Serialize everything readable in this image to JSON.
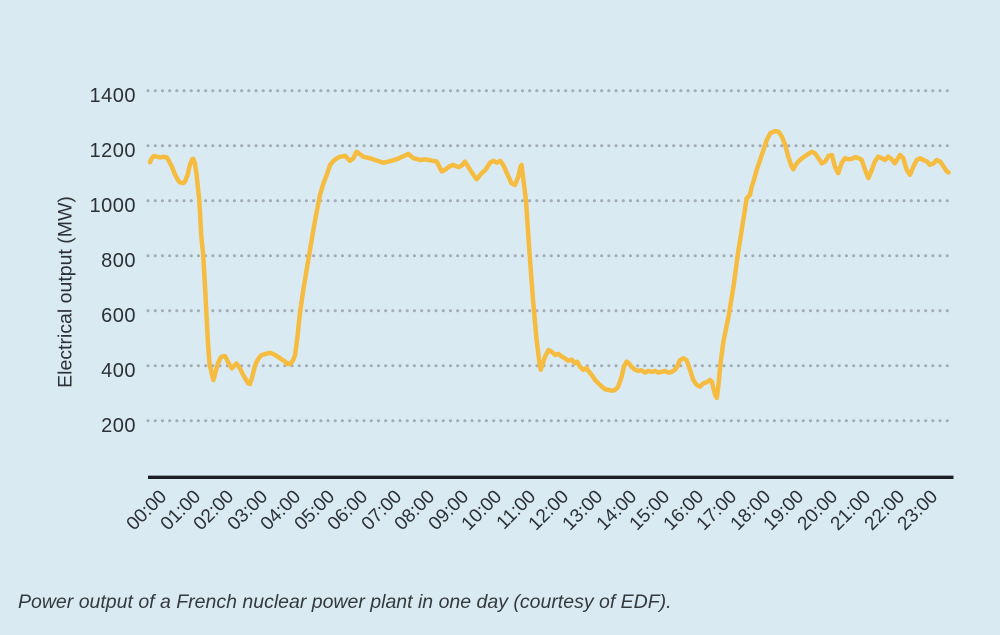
{
  "figure": {
    "caption": "Power output of a French nuclear power plant in one day (courtesy of EDF)."
  },
  "chart_data": {
    "type": "line",
    "title": "",
    "xlabel": "",
    "ylabel": "Electrical output (MW)",
    "x_unit": "time of day",
    "xlim": [
      0,
      24
    ],
    "ylim": [
      0,
      1500
    ],
    "grid": "dotted horizontal gridlines at each y tick",
    "legend": "none",
    "yticks": [
      200,
      400,
      600,
      800,
      1000,
      1200,
      1400
    ],
    "ytick_labels": [
      "200",
      "400",
      "600",
      "800",
      "1000",
      "1200",
      "1400"
    ],
    "xticks": [
      0,
      1,
      2,
      3,
      4,
      5,
      6,
      7,
      8,
      9,
      10,
      11,
      12,
      13,
      14,
      15,
      16,
      17,
      18,
      19,
      20,
      21,
      22,
      23
    ],
    "xtick_labels": [
      "00:00",
      "01:00",
      "02:00",
      "03:00",
      "04:00",
      "05:00",
      "06:00",
      "07:00",
      "08:00",
      "09:00",
      "10:00",
      "11:00",
      "12:00",
      "13:00",
      "14:00",
      "15:00",
      "16:00",
      "17:00",
      "18:00",
      "19:00",
      "20:00",
      "21:00",
      "22:00",
      "23:00"
    ],
    "colors": {
      "background": "#d9eaf3",
      "line": "#f5bc40",
      "grid_dots": "#a4adb4",
      "axis": "#1b1f23",
      "text": "#2c3135"
    },
    "series": [
      {
        "name": "power_output_MW",
        "points": [
          [
            0.0,
            1140
          ],
          [
            0.05,
            1154
          ],
          [
            0.12,
            1163
          ],
          [
            0.2,
            1160
          ],
          [
            0.3,
            1157
          ],
          [
            0.4,
            1160
          ],
          [
            0.5,
            1157
          ],
          [
            0.55,
            1148
          ],
          [
            0.65,
            1124
          ],
          [
            0.75,
            1094
          ],
          [
            0.83,
            1076
          ],
          [
            0.89,
            1067
          ],
          [
            0.99,
            1064
          ],
          [
            1.04,
            1069
          ],
          [
            1.12,
            1094
          ],
          [
            1.19,
            1130
          ],
          [
            1.26,
            1151
          ],
          [
            1.29,
            1152
          ],
          [
            1.34,
            1136
          ],
          [
            1.39,
            1094
          ],
          [
            1.47,
            1000
          ],
          [
            1.53,
            870
          ],
          [
            1.59,
            800
          ],
          [
            1.67,
            620
          ],
          [
            1.73,
            480
          ],
          [
            1.78,
            400
          ],
          [
            1.82,
            385
          ],
          [
            1.86,
            360
          ],
          [
            1.89,
            348
          ],
          [
            1.95,
            375
          ],
          [
            2.03,
            410
          ],
          [
            2.1,
            428
          ],
          [
            2.14,
            433
          ],
          [
            2.24,
            435
          ],
          [
            2.34,
            410
          ],
          [
            2.44,
            390
          ],
          [
            2.51,
            400
          ],
          [
            2.58,
            408
          ],
          [
            2.68,
            390
          ],
          [
            2.78,
            366
          ],
          [
            2.88,
            345
          ],
          [
            2.93,
            336
          ],
          [
            2.98,
            333
          ],
          [
            3.05,
            360
          ],
          [
            3.12,
            395
          ],
          [
            3.18,
            415
          ],
          [
            3.26,
            430
          ],
          [
            3.33,
            439
          ],
          [
            3.45,
            443
          ],
          [
            3.58,
            447
          ],
          [
            3.66,
            443
          ],
          [
            3.73,
            439
          ],
          [
            3.8,
            433
          ],
          [
            3.88,
            427
          ],
          [
            3.96,
            420
          ],
          [
            4.03,
            415
          ],
          [
            4.08,
            406
          ],
          [
            4.12,
            409
          ],
          [
            4.17,
            405
          ],
          [
            4.22,
            412
          ],
          [
            4.27,
            421
          ],
          [
            4.33,
            440
          ],
          [
            4.4,
            510
          ],
          [
            4.47,
            590
          ],
          [
            4.57,
            675
          ],
          [
            4.67,
            748
          ],
          [
            4.77,
            821
          ],
          [
            4.87,
            893
          ],
          [
            4.97,
            960
          ],
          [
            5.07,
            1021
          ],
          [
            5.17,
            1063
          ],
          [
            5.27,
            1094
          ],
          [
            5.37,
            1130
          ],
          [
            5.47,
            1145
          ],
          [
            5.57,
            1154
          ],
          [
            5.67,
            1160
          ],
          [
            5.82,
            1163
          ],
          [
            5.96,
            1145
          ],
          [
            6.06,
            1154
          ],
          [
            6.16,
            1178
          ],
          [
            6.36,
            1160
          ],
          [
            6.56,
            1154
          ],
          [
            6.71,
            1148
          ],
          [
            6.96,
            1138
          ],
          [
            7.11,
            1142
          ],
          [
            7.36,
            1151
          ],
          [
            7.7,
            1170
          ],
          [
            7.85,
            1155
          ],
          [
            8.05,
            1148
          ],
          [
            8.2,
            1150
          ],
          [
            8.35,
            1147
          ],
          [
            8.55,
            1142
          ],
          [
            8.7,
            1106
          ],
          [
            8.8,
            1113
          ],
          [
            8.95,
            1126
          ],
          [
            9.04,
            1130
          ],
          [
            9.19,
            1122
          ],
          [
            9.29,
            1127
          ],
          [
            9.39,
            1142
          ],
          [
            9.64,
            1094
          ],
          [
            9.74,
            1078
          ],
          [
            9.89,
            1100
          ],
          [
            9.99,
            1111
          ],
          [
            10.14,
            1138
          ],
          [
            10.24,
            1145
          ],
          [
            10.34,
            1138
          ],
          [
            10.44,
            1145
          ],
          [
            10.53,
            1130
          ],
          [
            10.64,
            1100
          ],
          [
            10.78,
            1063
          ],
          [
            10.88,
            1057
          ],
          [
            10.98,
            1087
          ],
          [
            11.05,
            1124
          ],
          [
            11.08,
            1130
          ],
          [
            11.21,
            1000
          ],
          [
            11.32,
            800
          ],
          [
            11.42,
            640
          ],
          [
            11.52,
            500
          ],
          [
            11.6,
            420
          ],
          [
            11.65,
            385
          ],
          [
            11.78,
            433
          ],
          [
            11.88,
            457
          ],
          [
            11.98,
            451
          ],
          [
            12.08,
            439
          ],
          [
            12.18,
            443
          ],
          [
            12.28,
            433
          ],
          [
            12.37,
            427
          ],
          [
            12.47,
            418
          ],
          [
            12.57,
            422
          ],
          [
            12.67,
            409
          ],
          [
            12.74,
            414
          ],
          [
            12.82,
            396
          ],
          [
            12.92,
            385
          ],
          [
            13.02,
            391
          ],
          [
            13.07,
            381
          ],
          [
            13.17,
            366
          ],
          [
            13.27,
            348
          ],
          [
            13.37,
            336
          ],
          [
            13.47,
            324
          ],
          [
            13.57,
            314
          ],
          [
            13.67,
            312
          ],
          [
            13.77,
            309
          ],
          [
            13.87,
            312
          ],
          [
            13.96,
            324
          ],
          [
            14.06,
            360
          ],
          [
            14.13,
            396
          ],
          [
            14.21,
            415
          ],
          [
            14.26,
            411
          ],
          [
            14.36,
            396
          ],
          [
            14.46,
            385
          ],
          [
            14.56,
            381
          ],
          [
            14.66,
            383
          ],
          [
            14.76,
            375
          ],
          [
            14.86,
            381
          ],
          [
            14.96,
            378
          ],
          [
            15.06,
            381
          ],
          [
            15.16,
            375
          ],
          [
            15.26,
            378
          ],
          [
            15.36,
            381
          ],
          [
            15.45,
            375
          ],
          [
            15.55,
            377
          ],
          [
            15.65,
            385
          ],
          [
            15.72,
            396
          ],
          [
            15.8,
            420
          ],
          [
            15.9,
            427
          ],
          [
            15.95,
            424
          ],
          [
            16.0,
            420
          ],
          [
            16.1,
            385
          ],
          [
            16.2,
            348
          ],
          [
            16.3,
            330
          ],
          [
            16.4,
            324
          ],
          [
            16.5,
            336
          ],
          [
            16.6,
            340
          ],
          [
            16.7,
            348
          ],
          [
            16.75,
            342
          ],
          [
            16.85,
            294
          ],
          [
            16.9,
            283
          ],
          [
            16.95,
            330
          ],
          [
            17.0,
            400
          ],
          [
            17.1,
            490
          ],
          [
            17.25,
            580
          ],
          [
            17.4,
            690
          ],
          [
            17.52,
            800
          ],
          [
            17.65,
            900
          ],
          [
            17.79,
            1009
          ],
          [
            17.89,
            1021
          ],
          [
            17.94,
            1051
          ],
          [
            17.99,
            1069
          ],
          [
            18.09,
            1112
          ],
          [
            18.19,
            1148
          ],
          [
            18.29,
            1184
          ],
          [
            18.39,
            1221
          ],
          [
            18.49,
            1245
          ],
          [
            18.64,
            1253
          ],
          [
            18.74,
            1251
          ],
          [
            18.84,
            1233
          ],
          [
            18.94,
            1203
          ],
          [
            19.03,
            1160
          ],
          [
            19.13,
            1124
          ],
          [
            19.18,
            1114
          ],
          [
            19.28,
            1136
          ],
          [
            19.38,
            1148
          ],
          [
            19.48,
            1158
          ],
          [
            19.58,
            1166
          ],
          [
            19.73,
            1178
          ],
          [
            19.83,
            1172
          ],
          [
            19.93,
            1154
          ],
          [
            20.03,
            1136
          ],
          [
            20.13,
            1142
          ],
          [
            20.23,
            1163
          ],
          [
            20.33,
            1166
          ],
          [
            20.42,
            1124
          ],
          [
            20.52,
            1100
          ],
          [
            20.62,
            1136
          ],
          [
            20.72,
            1154
          ],
          [
            20.82,
            1151
          ],
          [
            20.92,
            1152
          ],
          [
            21.02,
            1158
          ],
          [
            21.12,
            1155
          ],
          [
            21.22,
            1148
          ],
          [
            21.32,
            1112
          ],
          [
            21.42,
            1082
          ],
          [
            21.52,
            1112
          ],
          [
            21.61,
            1142
          ],
          [
            21.71,
            1160
          ],
          [
            21.81,
            1155
          ],
          [
            21.91,
            1148
          ],
          [
            22.01,
            1160
          ],
          [
            22.11,
            1151
          ],
          [
            22.21,
            1136
          ],
          [
            22.36,
            1166
          ],
          [
            22.46,
            1154
          ],
          [
            22.56,
            1112
          ],
          [
            22.66,
            1094
          ],
          [
            22.76,
            1124
          ],
          [
            22.86,
            1148
          ],
          [
            22.96,
            1154
          ],
          [
            23.06,
            1148
          ],
          [
            23.16,
            1143
          ],
          [
            23.26,
            1130
          ],
          [
            23.36,
            1136
          ],
          [
            23.46,
            1148
          ],
          [
            23.56,
            1142
          ],
          [
            23.66,
            1124
          ],
          [
            23.76,
            1106
          ],
          [
            23.81,
            1103
          ]
        ]
      }
    ]
  }
}
